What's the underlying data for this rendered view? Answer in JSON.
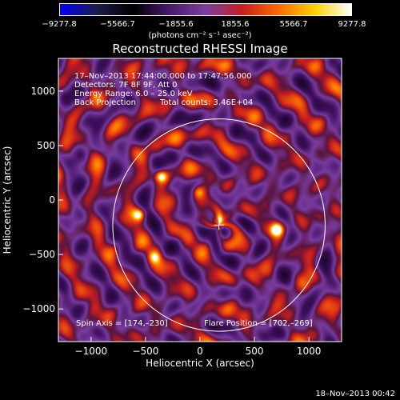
{
  "colorbar": {
    "ticks": [
      "−9277.8",
      "−5566.7",
      "−1855.6",
      "1855.6",
      "5566.7",
      "9277.8"
    ],
    "units": "(photons cm⁻² s⁻¹ asec⁻²)"
  },
  "title": "Reconstructed RHESSI Image",
  "info": {
    "line1": "17–Nov–2013 17:44:00.000 to 17:47:56.000",
    "line2": "Detectors: 7F 8F 9F, Att 0",
    "line3": "Energy Range: 6.0 – 25.0 keV",
    "line4": "Back Projection",
    "line5": "Total counts: 3.46E+04",
    "spin_axis": "Spin Axis = [174,–230]",
    "flare_position": "Flare Position = [702,–269]"
  },
  "footer": "18–Nov–2013 00:42",
  "chart_data": {
    "type": "heatmap",
    "title": "Reconstructed RHESSI Image",
    "xlabel": "Heliocentric X (arcsec)",
    "ylabel": "Heliocentric Y (arcsec)",
    "xlim": [
      -1300,
      1300
    ],
    "ylim": [
      -1300,
      1300
    ],
    "xticks": [
      -1000,
      -500,
      0,
      500,
      1000
    ],
    "yticks": [
      -1000,
      -500,
      0,
      500,
      1000
    ],
    "xtick_labels": [
      "−1000",
      "−500",
      "0",
      "500",
      "1000"
    ],
    "ytick_labels": [
      "−1000",
      "−500",
      "0",
      "500",
      "1000"
    ],
    "value_range": [
      -9277.8,
      9277.8
    ],
    "limb_radius_arcsec": 975,
    "sun_center_marker": [
      174,
      -230
    ],
    "bright_sources": [
      {
        "x": -360,
        "y": 220,
        "level": 0.95
      },
      {
        "x": 702,
        "y": -269,
        "level": 1.0
      },
      {
        "x": -560,
        "y": -130,
        "level": 0.8
      },
      {
        "x": 180,
        "y": -190,
        "level": 0.7
      },
      {
        "x": -20,
        "y": 80,
        "level": 0.55
      },
      {
        "x": -420,
        "y": -520,
        "level": 0.6
      }
    ],
    "colormap": [
      "#0000ff",
      "#1d1d4d",
      "#000000",
      "#4a1a6e",
      "#7a3fa0",
      "#c81e1e",
      "#ff6a00",
      "#ffd000",
      "#ffffff"
    ]
  }
}
